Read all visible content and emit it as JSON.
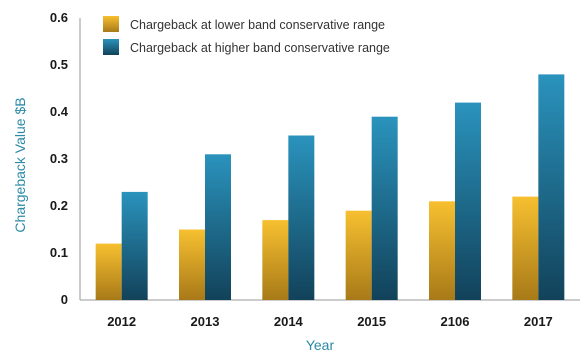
{
  "chart_data": {
    "type": "bar",
    "categories": [
      "2012",
      "2013",
      "2014",
      "2015",
      "2106",
      "2017"
    ],
    "series": [
      {
        "name": "Chargeback at lower band conservative range",
        "values": [
          0.12,
          0.15,
          0.17,
          0.19,
          0.21,
          0.22
        ],
        "color": "#f0b020"
      },
      {
        "name": "Chargeback at higher band conservative range",
        "values": [
          0.23,
          0.31,
          0.35,
          0.39,
          0.42,
          0.48
        ],
        "color": "#1f7fa6"
      }
    ],
    "xlabel": "Year",
    "ylabel": "Chargeback Value $B",
    "ylim": [
      0,
      0.6
    ],
    "yticks": [
      "0",
      "0.1",
      "0.2",
      "0.3",
      "0.4",
      "0.5",
      "0.6"
    ],
    "grid": false,
    "legend_position": "top-left"
  }
}
